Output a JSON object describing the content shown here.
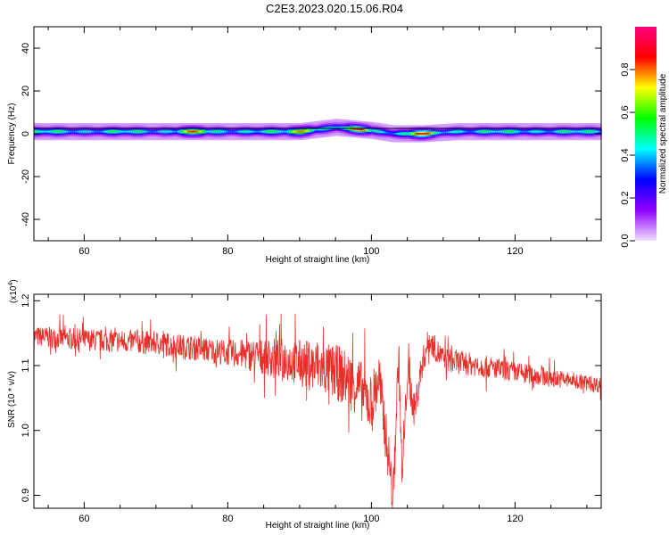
{
  "title": "C2E3.2023.020.15.06.R04",
  "chart_data": [
    {
      "type": "heatmap",
      "ylabel": "Frequency (Hz)",
      "xlabel": "Height of straight line (km)",
      "xlim": [
        53,
        132
      ],
      "ylim": [
        -50,
        50
      ],
      "xticks": [
        60,
        80,
        100,
        120
      ],
      "yticks": [
        -40,
        -20,
        0,
        20,
        40
      ],
      "colorbar": {
        "label": "Normalized spectral amplitude",
        "range": [
          0,
          1
        ],
        "ticks": [
          "0.0",
          "0.2",
          "0.4",
          "0.6",
          "0.8"
        ],
        "colors": [
          "#f0e0ff",
          "#9000ff",
          "#0000ff",
          "#00ffff",
          "#00ff00",
          "#ffff00",
          "#ff0000",
          "#ff0080"
        ]
      },
      "band": {
        "center_hz": [
          {
            "x": 53,
            "y": 1
          },
          {
            "x": 90,
            "y": 1
          },
          {
            "x": 95,
            "y": 3
          },
          {
            "x": 100,
            "y": 1.5
          },
          {
            "x": 103,
            "y": 0
          },
          {
            "x": 107,
            "y": 0
          },
          {
            "x": 112,
            "y": 1
          },
          {
            "x": 132,
            "y": 1
          }
        ],
        "halfwidth_hz": 4,
        "peaks": [
          {
            "x": 75,
            "y": 1.5,
            "amp": 0.85
          },
          {
            "x": 90,
            "y": 1.5,
            "amp": 0.8
          },
          {
            "x": 98,
            "y": 1.5,
            "amp": 0.9
          },
          {
            "x": 107,
            "y": 0,
            "amp": 0.95
          }
        ]
      }
    },
    {
      "type": "line",
      "ylabel": "SNR (10 * v/v)",
      "yscale_label": "(x10",
      "yscale_exp": "4",
      "xlabel": "Height of straight line (km)",
      "xlim": [
        53,
        132
      ],
      "ylim": [
        0.88,
        1.21
      ],
      "xticks": [
        60,
        80,
        100,
        120
      ],
      "yticks": [
        "0.9",
        "1.0",
        "1.1",
        "1.2"
      ],
      "ytick_values": [
        0.9,
        1.0,
        1.1,
        1.2
      ],
      "series": [
        {
          "color": "#e8302a",
          "trend": [
            {
              "x": 53,
              "y": 1.145
            },
            {
              "x": 60,
              "y": 1.14
            },
            {
              "x": 70,
              "y": 1.135
            },
            {
              "x": 80,
              "y": 1.12
            },
            {
              "x": 88,
              "y": 1.11
            },
            {
              "x": 95,
              "y": 1.09
            },
            {
              "x": 98,
              "y": 1.07
            },
            {
              "x": 100,
              "y": 1.04
            },
            {
              "x": 101,
              "y": 1.08
            },
            {
              "x": 102.5,
              "y": 0.95
            },
            {
              "x": 103,
              "y": 0.89
            },
            {
              "x": 103.8,
              "y": 1.12
            },
            {
              "x": 104.3,
              "y": 0.92
            },
            {
              "x": 105,
              "y": 1.09
            },
            {
              "x": 106,
              "y": 1.03
            },
            {
              "x": 107,
              "y": 1.1
            },
            {
              "x": 108,
              "y": 1.14
            },
            {
              "x": 110,
              "y": 1.11
            },
            {
              "x": 120,
              "y": 1.09
            },
            {
              "x": 132,
              "y": 1.07
            }
          ],
          "noise_amplitude": [
            {
              "x": 53,
              "y": 0.02
            },
            {
              "x": 80,
              "y": 0.025
            },
            {
              "x": 92,
              "y": 0.05
            },
            {
              "x": 100,
              "y": 0.06
            },
            {
              "x": 108,
              "y": 0.025
            },
            {
              "x": 132,
              "y": 0.015
            }
          ]
        }
      ]
    }
  ]
}
